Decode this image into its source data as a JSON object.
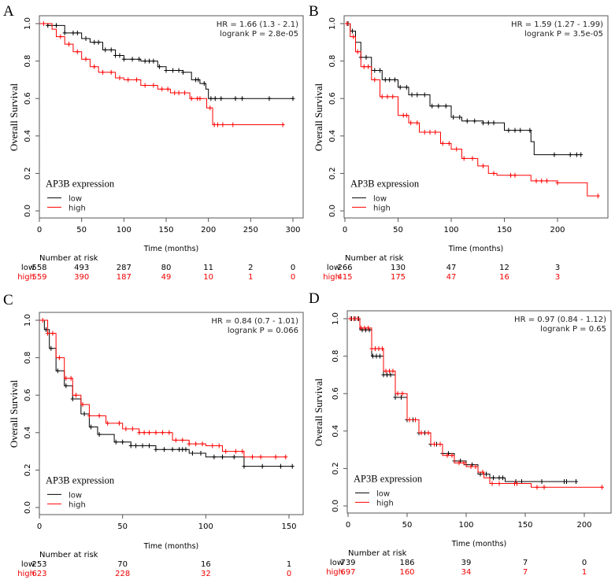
{
  "colors": {
    "low": "#000000",
    "high": "#ff0000",
    "axis": "#555555"
  },
  "chart_data": [
    {
      "panel": "A",
      "type": "line",
      "subtype": "kaplan-meier",
      "ylabel": "Overall Survival",
      "xlabel": "Time (months)",
      "xlim": [
        0,
        300
      ],
      "ylim": [
        0,
        1
      ],
      "xticks": [
        "0",
        "50",
        "100",
        "150",
        "200",
        "250",
        "300"
      ],
      "yticks": [
        "0.0",
        "0.2",
        "0.4",
        "0.6",
        "0.8",
        "1.0"
      ],
      "stats": [
        "HR = 1.66 (1.3 - 2.1)",
        "logrank P = 2.8e-05"
      ],
      "legend_title": "AP3B expression",
      "series": [
        {
          "name": "low",
          "color": "#000000",
          "x": [
            0,
            10,
            30,
            50,
            60,
            75,
            90,
            100,
            120,
            140,
            150,
            170,
            180,
            190,
            197,
            200,
            300
          ],
          "y": [
            1,
            0.99,
            0.95,
            0.92,
            0.9,
            0.86,
            0.83,
            0.81,
            0.8,
            0.77,
            0.75,
            0.74,
            0.7,
            0.68,
            0.65,
            0.6,
            0.6
          ],
          "censored": [
            10,
            20,
            30,
            40,
            45,
            55,
            65,
            70,
            78,
            85,
            90,
            95,
            100,
            110,
            118,
            125,
            130,
            135,
            142,
            150,
            158,
            165,
            170,
            185,
            188,
            195,
            203,
            208,
            215,
            232,
            240,
            272,
            300
          ]
        },
        {
          "name": "high",
          "color": "#ff0000",
          "x": [
            0,
            15,
            20,
            30,
            40,
            50,
            60,
            70,
            90,
            100,
            120,
            140,
            155,
            178,
            198,
            205,
            288
          ],
          "y": [
            1,
            0.97,
            0.93,
            0.89,
            0.85,
            0.81,
            0.77,
            0.74,
            0.71,
            0.7,
            0.67,
            0.65,
            0.63,
            0.6,
            0.55,
            0.46,
            0.46
          ],
          "censored": [
            5,
            25,
            35,
            45,
            55,
            65,
            75,
            85,
            95,
            105,
            115,
            125,
            135,
            145,
            152,
            160,
            165,
            172,
            180,
            187,
            190,
            202,
            207,
            211,
            217,
            229,
            288
          ]
        }
      ],
      "risk_table": {
        "title": "Number at risk",
        "times": [
          "0",
          "50",
          "100",
          "150",
          "200",
          "250",
          "300"
        ],
        "rows": [
          {
            "label": "low",
            "values": [
              "558",
              "493",
              "287",
              "80",
              "11",
              "2",
              "0"
            ]
          },
          {
            "label": "high",
            "values": [
              "559",
              "390",
              "187",
              "49",
              "10",
              "1",
              "0"
            ]
          }
        ]
      }
    },
    {
      "panel": "B",
      "type": "line",
      "subtype": "kaplan-meier",
      "ylabel": "Overall Survival",
      "xlabel": "Time (months)",
      "xlim": [
        0,
        240
      ],
      "ylim": [
        0,
        1
      ],
      "xticks": [
        "0",
        "50",
        "100",
        "150",
        "200"
      ],
      "yticks": [
        "0.0",
        "0.2",
        "0.4",
        "0.6",
        "0.8",
        "1.0"
      ],
      "stats": [
        "HR = 1.59 (1.27 - 1.99)",
        "logrank P = 3.5e-05"
      ],
      "legend_title": "AP3B expression",
      "series": [
        {
          "name": "low",
          "color": "#000000",
          "x": [
            0,
            5,
            10,
            15,
            25,
            35,
            50,
            60,
            80,
            100,
            110,
            130,
            150,
            175,
            178,
            222
          ],
          "y": [
            1,
            0.96,
            0.9,
            0.82,
            0.75,
            0.7,
            0.66,
            0.62,
            0.56,
            0.5,
            0.48,
            0.47,
            0.43,
            0.37,
            0.3,
            0.3
          ],
          "censored": [
            3,
            7,
            15,
            20,
            28,
            33,
            38,
            42,
            47,
            52,
            58,
            63,
            68,
            75,
            82,
            88,
            95,
            102,
            108,
            115,
            122,
            130,
            135,
            140,
            154,
            160,
            165,
            174,
            197,
            212,
            218,
            222
          ]
        },
        {
          "name": "high",
          "color": "#ff0000",
          "x": [
            0,
            5,
            10,
            15,
            25,
            33,
            50,
            60,
            70,
            90,
            100,
            110,
            125,
            135,
            143,
            175,
            200,
            228,
            238
          ],
          "y": [
            1,
            0.93,
            0.85,
            0.77,
            0.7,
            0.61,
            0.51,
            0.47,
            0.42,
            0.36,
            0.33,
            0.28,
            0.24,
            0.2,
            0.19,
            0.16,
            0.15,
            0.08,
            0.08
          ],
          "censored": [
            2,
            8,
            12,
            18,
            22,
            28,
            35,
            40,
            45,
            55,
            58,
            62,
            68,
            75,
            80,
            85,
            92,
            98,
            105,
            112,
            120,
            130,
            140,
            156,
            160,
            180,
            185,
            190,
            200,
            238
          ]
        }
      ],
      "risk_table": {
        "title": "Number at risk",
        "times": [
          "0",
          "50",
          "100",
          "150",
          "200"
        ],
        "rows": [
          {
            "label": "low",
            "values": [
              "266",
              "130",
              "47",
              "12",
              "3"
            ]
          },
          {
            "label": "high",
            "values": [
              "415",
              "175",
              "47",
              "16",
              "3"
            ]
          }
        ]
      }
    },
    {
      "panel": "C",
      "type": "line",
      "subtype": "kaplan-meier",
      "ylabel": "Overall Survival",
      "xlabel": "Time (months)",
      "xlim": [
        0,
        155
      ],
      "ylim": [
        0,
        1
      ],
      "xticks": [
        "0",
        "50",
        "100",
        "150"
      ],
      "yticks": [
        "0.0",
        "0.2",
        "0.4",
        "0.6",
        "0.8",
        "1.0"
      ],
      "stats": [
        "HR = 0.84 (0.7 - 1.01)",
        "logrank P = 0.066"
      ],
      "legend_title": "AP3B expression",
      "series": [
        {
          "name": "low",
          "color": "#000000",
          "x": [
            0,
            3,
            6,
            10,
            15,
            20,
            25,
            30,
            35,
            45,
            55,
            70,
            90,
            100,
            123,
            152
          ],
          "y": [
            1,
            0.95,
            0.85,
            0.73,
            0.65,
            0.58,
            0.5,
            0.43,
            0.39,
            0.35,
            0.33,
            0.31,
            0.29,
            0.27,
            0.22,
            0.22
          ],
          "censored": [
            4,
            7,
            11,
            16,
            20,
            27,
            31,
            36,
            46,
            50,
            55,
            58,
            62,
            66,
            70,
            75,
            80,
            84,
            86,
            88,
            92,
            97,
            105,
            110,
            117,
            123,
            134,
            145,
            152
          ]
        },
        {
          "name": "high",
          "color": "#ff0000",
          "x": [
            0,
            5,
            10,
            15,
            20,
            25,
            30,
            40,
            50,
            60,
            80,
            90,
            100,
            110,
            123,
            148
          ],
          "y": [
            1,
            0.93,
            0.8,
            0.69,
            0.6,
            0.55,
            0.49,
            0.45,
            0.42,
            0.4,
            0.36,
            0.34,
            0.33,
            0.3,
            0.27,
            0.27
          ],
          "censored": [
            2,
            5,
            8,
            12,
            16,
            19,
            22,
            26,
            30,
            36,
            41,
            48,
            52,
            56,
            60,
            63,
            66,
            70,
            74,
            78,
            82,
            86,
            90,
            94,
            98,
            104,
            108,
            112,
            118,
            122,
            128,
            133,
            142,
            148
          ]
        }
      ],
      "risk_table": {
        "title": "Number at risk",
        "times": [
          "0",
          "50",
          "100",
          "150"
        ],
        "rows": [
          {
            "label": "low",
            "values": [
              "253",
              "70",
              "16",
              "1"
            ]
          },
          {
            "label": "high",
            "values": [
              "623",
              "228",
              "32",
              "0"
            ]
          }
        ]
      }
    },
    {
      "panel": "D",
      "type": "line",
      "subtype": "kaplan-meier",
      "ylabel": "Overall Survival",
      "xlabel": "Time (months)",
      "xlim": [
        0,
        222
      ],
      "ylim": [
        0,
        1
      ],
      "xticks": [
        "0",
        "50",
        "100",
        "150",
        "200"
      ],
      "yticks": [
        "0.0",
        "0.2",
        "0.4",
        "0.6",
        "0.8",
        "1.0"
      ],
      "stats": [
        "HR = 0.97 (0.84 - 1.12)",
        "logrank P = 0.65"
      ],
      "legend_title": "AP3B expression",
      "series": [
        {
          "name": "low",
          "color": "#000000",
          "x": [
            0,
            10,
            20,
            30,
            40,
            50,
            60,
            70,
            80,
            90,
            100,
            110,
            120,
            133,
            193
          ],
          "y": [
            1,
            0.94,
            0.8,
            0.7,
            0.58,
            0.46,
            0.39,
            0.33,
            0.28,
            0.24,
            0.22,
            0.17,
            0.15,
            0.13,
            0.13
          ],
          "censored": [
            3,
            6,
            9,
            12,
            15,
            18,
            21,
            24,
            27,
            30,
            33,
            36,
            40,
            45,
            50,
            55,
            60,
            65,
            70,
            75,
            80,
            85,
            90,
            95,
            100,
            105,
            112,
            117,
            123,
            128,
            131,
            142,
            147,
            164,
            183,
            185,
            193
          ]
        },
        {
          "name": "high",
          "color": "#ff0000",
          "x": [
            0,
            10,
            20,
            30,
            40,
            50,
            60,
            70,
            80,
            90,
            100,
            110,
            115,
            120,
            155,
            215
          ],
          "y": [
            1,
            0.95,
            0.84,
            0.72,
            0.6,
            0.46,
            0.39,
            0.33,
            0.27,
            0.23,
            0.21,
            0.18,
            0.15,
            0.12,
            0.1,
            0.1
          ],
          "censored": [
            2,
            5,
            8,
            11,
            14,
            17,
            20,
            23,
            26,
            29,
            32,
            35,
            38,
            42,
            46,
            52,
            57,
            62,
            68,
            73,
            78,
            84,
            88,
            94,
            98,
            104,
            108,
            114,
            122,
            128,
            141,
            143,
            160,
            166,
            215
          ]
        }
      ],
      "risk_table": {
        "title": "Number at risk",
        "times": [
          "0",
          "50",
          "100",
          "150",
          "200"
        ],
        "rows": [
          {
            "label": "low",
            "values": [
              "739",
              "186",
              "39",
              "7",
              "0"
            ]
          },
          {
            "label": "high",
            "values": [
              "697",
              "160",
              "34",
              "7",
              "1"
            ]
          }
        ]
      }
    }
  ]
}
